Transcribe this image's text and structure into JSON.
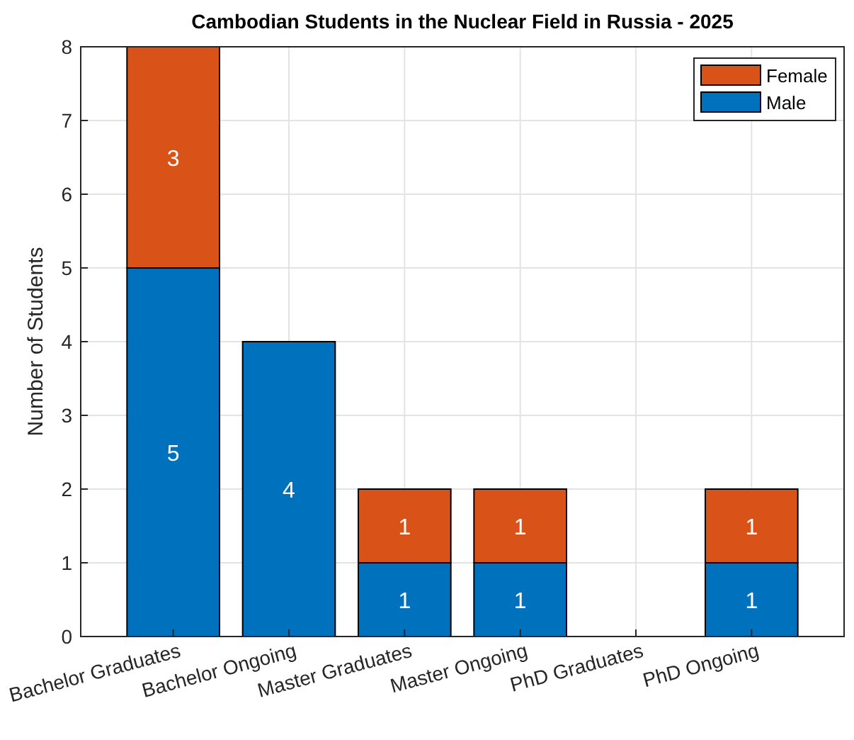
{
  "chart_data": {
    "type": "bar",
    "title": "Cambodian Students in the Nuclear Field in Russia - 2025",
    "ylabel": "Number of Students",
    "categories": [
      "Bachelor Graduates",
      "Bachelor Ongoing",
      "Master Graduates",
      "Master Ongoing",
      "PhD Graduates",
      "PhD Ongoing"
    ],
    "stacked": true,
    "series": [
      {
        "name": "Male",
        "color": "#0072bd",
        "values": [
          5,
          4,
          1,
          1,
          0,
          1
        ],
        "value_labels": [
          "5",
          "4",
          "1",
          "1",
          null,
          "1"
        ]
      },
      {
        "name": "Female",
        "color": "#d95319",
        "values": [
          3,
          0,
          1,
          1,
          0,
          1
        ],
        "value_labels": [
          "3",
          null,
          "1",
          "1",
          null,
          "1"
        ]
      }
    ],
    "ylim": [
      0,
      8
    ],
    "yticks": [
      0,
      1,
      2,
      3,
      4,
      5,
      6,
      7,
      8
    ],
    "grid": true,
    "legend": "top right"
  }
}
